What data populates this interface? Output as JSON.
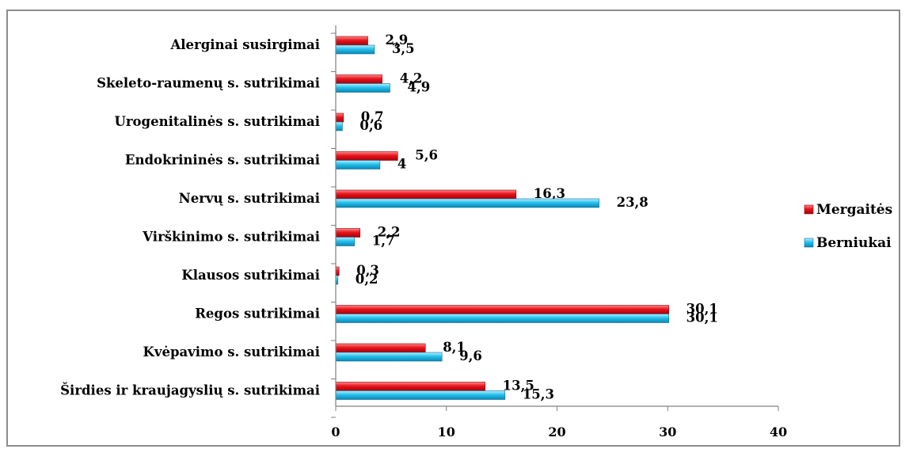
{
  "chart_data": {
    "type": "bar",
    "orientation": "horizontal",
    "categories": [
      "Alerginai susirgimai",
      "Skeleto-raumenų s. sutrikimai",
      "Urogenitalinės s. sutrikimai",
      "Endokrininės s. sutrikimai",
      "Nervų s. sutrikimai",
      "Virškinimo s. sutrikimai",
      "Klausos sutrikimai",
      "Regos sutrikimai",
      "Kvėpavimo s. sutrikimai",
      "Širdies ir kraujagyslių s. sutrikimai"
    ],
    "series": [
      {
        "name": "Mergaitės",
        "color": "#e8141c",
        "values": [
          2.9,
          4.2,
          0.7,
          5.6,
          16.3,
          2.2,
          0.3,
          30.1,
          8.1,
          13.5
        ],
        "labels": [
          "2,9",
          "4,2",
          "0,7",
          "5,6",
          "16,3",
          "2,2",
          "0,3",
          "30,1",
          "8,1",
          "13,5"
        ]
      },
      {
        "name": "Berniukai",
        "color": "#1fb8e8",
        "values": [
          3.5,
          4.9,
          0.6,
          4,
          23.8,
          1.7,
          0.2,
          30.1,
          9.6,
          15.3
        ],
        "labels": [
          "3,5",
          "4,9",
          "0,6",
          "4",
          "23,8",
          "1,7",
          "0,2",
          "30,1",
          "9,6",
          "15,3"
        ]
      }
    ],
    "xlim": [
      0,
      40
    ],
    "xticks": [
      0,
      10,
      20,
      30,
      40
    ],
    "xtick_labels": [
      "0",
      "10",
      "20",
      "30",
      "40"
    ],
    "grid": false,
    "legend_position": "right"
  }
}
